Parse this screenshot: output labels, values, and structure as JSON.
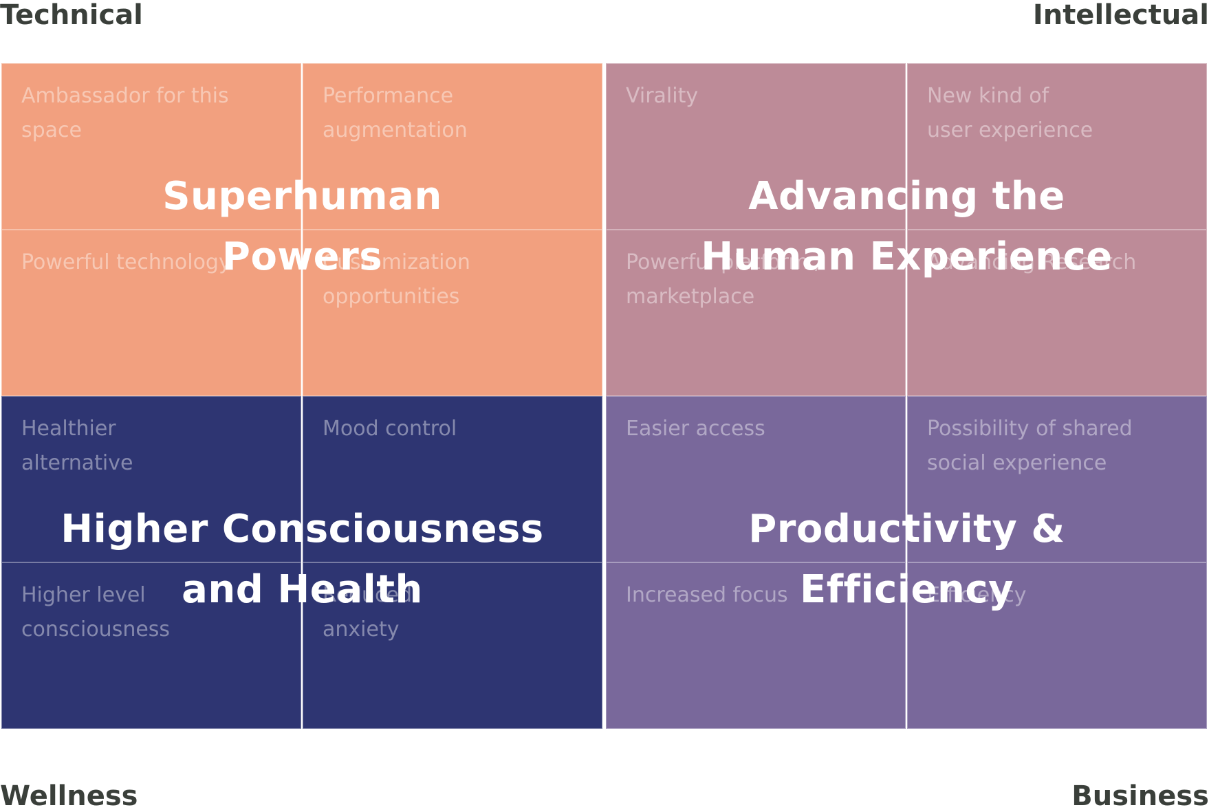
{
  "axes": {
    "top_left": "Technical",
    "top_right": "Intellectual",
    "bottom_left": "Wellness",
    "bottom_right": "Business"
  },
  "quadrants": [
    {
      "title_lines": [
        "Superhuman",
        "Powers"
      ],
      "color": "#f2a07f",
      "cells": [
        {
          "lines": [
            "Ambassador for this",
            "space"
          ]
        },
        {
          "lines": [
            "Performance",
            "augmentation"
          ]
        },
        {
          "lines": [
            "Powerful technology"
          ]
        },
        {
          "lines": [
            "Customization",
            "opportunities"
          ]
        }
      ]
    },
    {
      "title_lines": [
        "Advancing the",
        "Human Experience"
      ],
      "color": "#bd8b98",
      "cells": [
        {
          "lines": [
            "Virality"
          ]
        },
        {
          "lines": [
            "New kind of",
            "user experience"
          ]
        },
        {
          "lines": [
            "Powerful platform /",
            "marketplace"
          ]
        },
        {
          "lines": [
            "Advancing Research"
          ]
        }
      ]
    },
    {
      "title_lines": [
        "Higher Consciousness",
        "and Health"
      ],
      "color": "#2e3572",
      "cells": [
        {
          "lines": [
            "Healthier",
            "alternative"
          ]
        },
        {
          "lines": [
            "Mood control"
          ]
        },
        {
          "lines": [
            "Higher level",
            "consciousness"
          ]
        },
        {
          "lines": [
            "Reduced",
            "anxiety"
          ]
        }
      ]
    },
    {
      "title_lines": [
        "Productivity &",
        "Efficiency"
      ],
      "color": "#79689b",
      "cells": [
        {
          "lines": [
            "Easier access"
          ]
        },
        {
          "lines": [
            "Possibility of shared",
            "social experience"
          ]
        },
        {
          "lines": [
            "Increased focus"
          ]
        },
        {
          "lines": [
            "Efficiency"
          ]
        }
      ]
    }
  ]
}
